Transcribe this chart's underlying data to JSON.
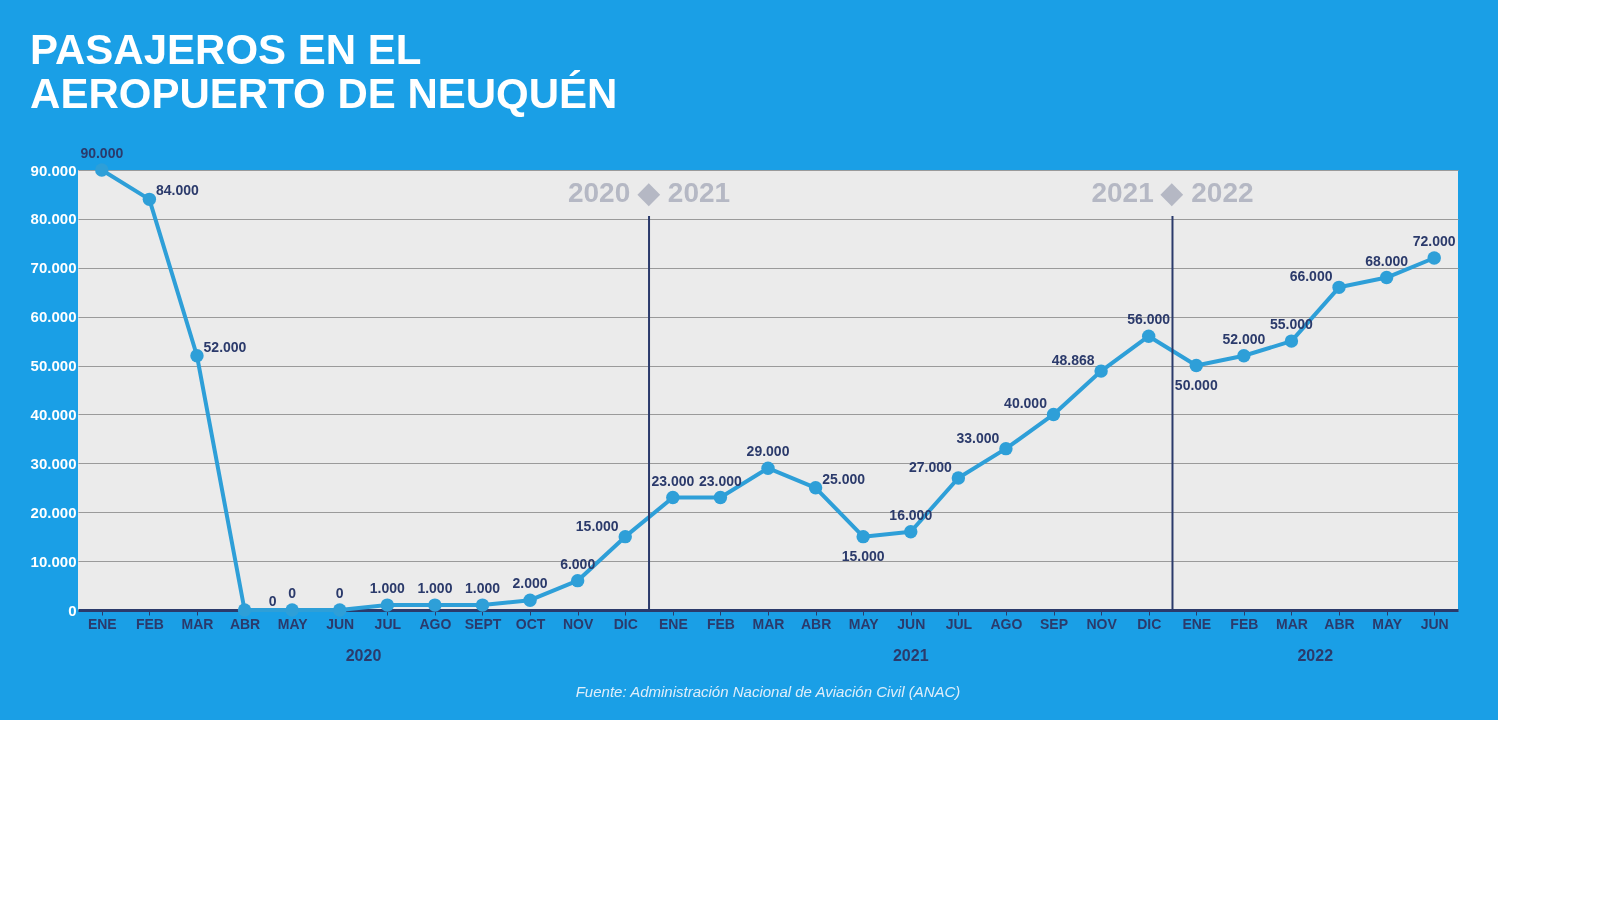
{
  "chart_data": {
    "type": "line",
    "title": [
      "PASAJEROS EN EL",
      "AEROPUERTO DE NEUQUÉN"
    ],
    "categories": [
      "ENE",
      "FEB",
      "MAR",
      "ABR",
      "MAY",
      "JUN",
      "JUL",
      "AGO",
      "SEPT",
      "OCT",
      "NOV",
      "DIC",
      "ENE",
      "FEB",
      "MAR",
      "ABR",
      "MAY",
      "JUN",
      "JUL",
      "AGO",
      "SEP",
      "NOV",
      "DIC",
      "ENE",
      "FEB",
      "MAR",
      "ABR",
      "MAY",
      "JUN"
    ],
    "values": [
      90000,
      84000,
      52000,
      0,
      0,
      0,
      1000,
      1000,
      1000,
      2000,
      6000,
      15000,
      23000,
      23000,
      29000,
      25000,
      15000,
      16000,
      27000,
      33000,
      40000,
      48868,
      56000,
      50000,
      52000,
      55000,
      66000,
      68000,
      72000
    ],
    "value_labels": [
      "90.000",
      "84.000",
      "52.000",
      "0",
      "0",
      "0",
      "1.000",
      "1.000",
      "1.000",
      "2.000",
      "6.000",
      "15.000",
      "23.000",
      "23.000",
      "29.000",
      "25.000",
      "15.000",
      "16.000",
      "27.000",
      "33.000",
      "40.000",
      "48.868",
      "56.000",
      "50.000",
      "52.000",
      "55.000",
      "66.000",
      "68.000",
      "72.000"
    ],
    "color": "#2e9fd8",
    "marker": "circle",
    "line_style": "solid",
    "grid": "y",
    "ylim": [
      0,
      90000
    ],
    "yticks": [
      0,
      {
        "value": 10000,
        "label": "10.000"
      },
      {
        "value": 20000,
        "label": "20.000"
      },
      {
        "value": 30000,
        "label": "30.000"
      },
      {
        "value": 40000,
        "label": "40.000"
      },
      {
        "value": 50000,
        "label": "50.000"
      },
      {
        "value": 60000,
        "label": "60.000"
      },
      {
        "value": 70000,
        "label": "70.000"
      },
      {
        "value": 80000,
        "label": "80.000"
      },
      {
        "value": 90000,
        "label": "90.000"
      }
    ],
    "annotations": [
      "2020 ◆ 2021",
      "2021 ◆ 2022",
      "2020",
      "2021",
      "2022",
      "Fuente: Administración  Nacional de Aviación Civil (ANAC)"
    ]
  }
}
